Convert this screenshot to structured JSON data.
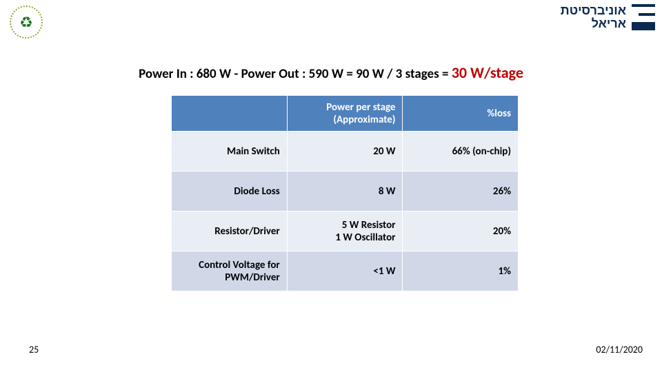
{
  "logo_left": {
    "icon": "recycle-icon",
    "glyph": "♻"
  },
  "logo_right": {
    "line1": "אוניברסיטת",
    "line2": "אריאל"
  },
  "title": {
    "main": "Power In : 680 W  - Power Out :  590 W  = 90 W / 3 stages = ",
    "highlight": "30 W/stage"
  },
  "table": {
    "headers": [
      "",
      "Power per stage (Approximate)",
      "%loss"
    ],
    "rows": [
      {
        "label": "Main Switch",
        "power": "20 W",
        "loss": "66% (on-chip)"
      },
      {
        "label": "Diode Loss",
        "power": "8 W",
        "loss": "26%"
      },
      {
        "label": "Resistor/Driver",
        "power": "5 W Resistor\n1 W Oscillator",
        "loss": "20%"
      },
      {
        "label": "Control Voltage for PWM/Driver",
        "power": "<1 W",
        "loss": "1%"
      }
    ],
    "colors": {
      "header_bg": "#4f81bd",
      "row_odd_bg": "#e9edf4",
      "row_even_bg": "#d0d8e8"
    }
  },
  "footer": {
    "page": "25",
    "date": "02/11/2020"
  }
}
